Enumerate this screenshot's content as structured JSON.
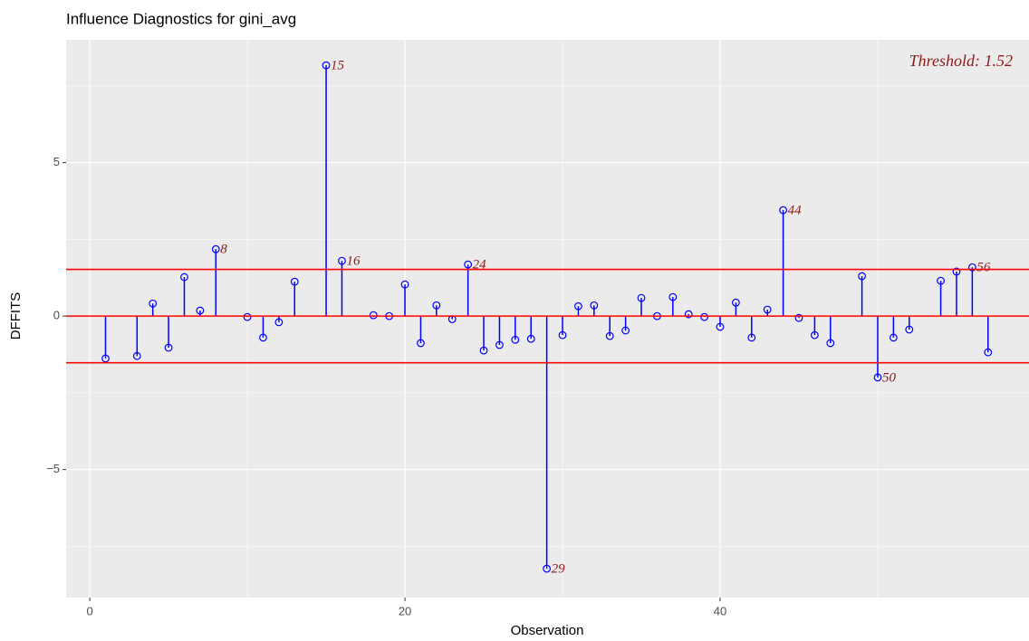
{
  "chart_data": {
    "type": "stem",
    "title": "Influence Diagnostics for gini_avg",
    "xlabel": "Observation",
    "ylabel": "DFFITS",
    "annotation": "Threshold: 1.52",
    "x": [
      1,
      3,
      4,
      5,
      6,
      7,
      8,
      10,
      11,
      12,
      13,
      15,
      16,
      18,
      19,
      20,
      21,
      22,
      23,
      24,
      25,
      26,
      27,
      28,
      29,
      30,
      31,
      32,
      33,
      34,
      35,
      36,
      37,
      38,
      39,
      40,
      41,
      42,
      43,
      44,
      45,
      46,
      47,
      49,
      50,
      51,
      52,
      54,
      55,
      56,
      57
    ],
    "values": [
      -1.38,
      -1.3,
      0.41,
      -1.03,
      1.27,
      0.18,
      2.18,
      -0.03,
      -0.7,
      -0.2,
      1.12,
      8.17,
      1.8,
      0.03,
      0.0,
      1.03,
      -0.88,
      0.35,
      -0.1,
      1.68,
      -1.12,
      -0.94,
      -0.77,
      -0.74,
      -8.23,
      -0.62,
      0.32,
      0.35,
      -0.65,
      -0.47,
      0.59,
      0.0,
      0.62,
      0.06,
      -0.03,
      -0.35,
      0.44,
      -0.7,
      0.21,
      3.45,
      -0.06,
      -0.62,
      -0.88,
      1.3,
      -2.0,
      -0.7,
      -0.44,
      1.15,
      1.45,
      1.59,
      -1.18
    ],
    "color": "#0000ff",
    "hlines": [
      1.52,
      0,
      -1.52
    ],
    "hline_color": "#ff0000",
    "label_color": "#8b1a1a",
    "xlim": [
      -1.5,
      59.6
    ],
    "ylim": [
      -9.17,
      9.0
    ],
    "xticks": [
      0,
      20,
      40
    ],
    "yticks": [
      {
        "value": -5,
        "label": "−5"
      },
      0,
      5
    ],
    "xminor": [
      10,
      30,
      50
    ],
    "yminor": [
      -7.5,
      -2.5,
      2.5,
      7.5
    ],
    "grid": true
  }
}
